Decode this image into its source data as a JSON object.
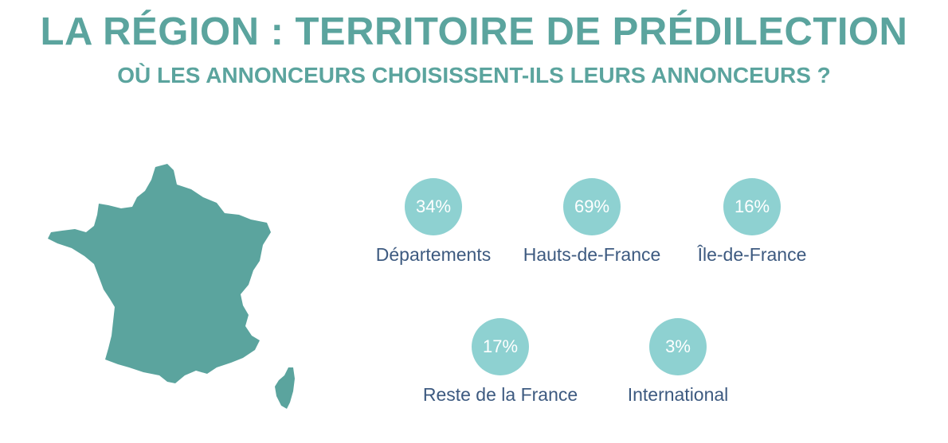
{
  "header": {
    "title": "LA RÉGION : TERRITOIRE DE PRÉDILECTION",
    "subtitle": "OÙ LES ANNONCEURS CHOISISSENT-ILS LEURS ANNONCEURS ?"
  },
  "colors": {
    "title": "#5ba49e",
    "map": "#5ba49e",
    "circle": "#8ed1d1",
    "label": "#3d5a80"
  },
  "stats": [
    {
      "value": "34%",
      "label": "Départements"
    },
    {
      "value": "69%",
      "label": "Hauts-de-France"
    },
    {
      "value": "16%",
      "label": "Île-de-France"
    },
    {
      "value": "17%",
      "label": "Reste de la France"
    },
    {
      "value": "3%",
      "label": "International"
    }
  ]
}
